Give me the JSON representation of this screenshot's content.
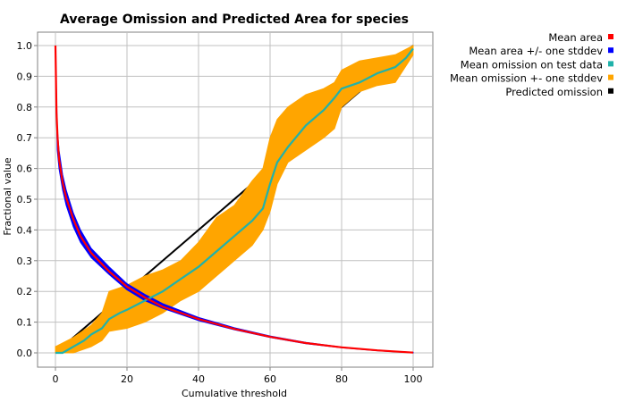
{
  "chart_data": {
    "type": "line",
    "title": "Average Omission and Predicted Area for species",
    "xlabel": "Cumulative threshold",
    "ylabel": "Fractional value",
    "xlim": [
      0,
      100
    ],
    "ylim": [
      0,
      1
    ],
    "x_ticks": [
      0,
      20,
      40,
      60,
      80,
      100
    ],
    "y_ticks": [
      0.0,
      0.1,
      0.2,
      0.3,
      0.4,
      0.5,
      0.6,
      0.7,
      0.8,
      0.9,
      1.0
    ],
    "x_tick_labels": [
      "0",
      "20",
      "40",
      "60",
      "80",
      "100"
    ],
    "y_tick_labels": [
      "0.0",
      "0.1",
      "0.2",
      "0.3",
      "0.4",
      "0.5",
      "0.6",
      "0.7",
      "0.8",
      "0.9",
      "1.0"
    ],
    "grid": true,
    "legend_position": "outside-top-right",
    "legend": [
      {
        "name": "Mean area",
        "color": "#ff0000"
      },
      {
        "name": "Mean area +/- one stddev",
        "color": "#0000ff"
      },
      {
        "name": "Mean omission on test data",
        "color": "#20b2aa"
      },
      {
        "name": "Mean omission +- one stddev",
        "color": "#ffa500"
      },
      {
        "name": "Predicted omission",
        "color": "#000000"
      }
    ],
    "series": [
      {
        "name": "Predicted omission",
        "color": "#000000",
        "x": [
          0,
          100
        ],
        "y": [
          0,
          1
        ]
      },
      {
        "name": "Mean omission +- one stddev",
        "color": "#ffa500",
        "x": [
          0,
          5,
          10,
          13,
          15,
          20,
          25,
          30,
          35,
          40,
          45,
          50,
          55,
          58,
          60,
          62,
          65,
          70,
          75,
          78,
          80,
          85,
          90,
          95,
          100
        ],
        "lower": [
          0,
          0,
          0.02,
          0.04,
          0.07,
          0.08,
          0.1,
          0.13,
          0.17,
          0.2,
          0.25,
          0.3,
          0.35,
          0.4,
          0.46,
          0.55,
          0.62,
          0.66,
          0.7,
          0.73,
          0.8,
          0.85,
          0.87,
          0.88,
          0.97
        ],
        "upper": [
          0.02,
          0.05,
          0.09,
          0.13,
          0.2,
          0.22,
          0.25,
          0.27,
          0.3,
          0.36,
          0.44,
          0.48,
          0.56,
          0.6,
          0.7,
          0.76,
          0.8,
          0.84,
          0.86,
          0.88,
          0.92,
          0.95,
          0.96,
          0.97,
          1.0
        ]
      },
      {
        "name": "Mean area +/- one stddev",
        "color": "#0000ff",
        "x": [
          0,
          0.5,
          1,
          2,
          3,
          5,
          7,
          10,
          15,
          20,
          25,
          30,
          40,
          50,
          60,
          70,
          80,
          90,
          100
        ],
        "lower": [
          0.95,
          0.66,
          0.6,
          0.53,
          0.48,
          0.41,
          0.36,
          0.31,
          0.255,
          0.205,
          0.17,
          0.145,
          0.105,
          0.075,
          0.05,
          0.03,
          0.017,
          0.007,
          0
        ],
        "upper": [
          1.0,
          0.73,
          0.66,
          0.58,
          0.53,
          0.455,
          0.4,
          0.34,
          0.28,
          0.225,
          0.19,
          0.16,
          0.115,
          0.082,
          0.055,
          0.034,
          0.019,
          0.008,
          0.002
        ]
      },
      {
        "name": "Mean omission on test data",
        "color": "#20b2aa",
        "x": [
          0,
          2,
          5,
          8,
          10,
          13,
          15,
          18,
          20,
          25,
          30,
          35,
          40,
          45,
          50,
          55,
          58,
          60,
          62,
          65,
          70,
          75,
          78,
          80,
          85,
          90,
          95,
          98,
          100
        ],
        "y": [
          0,
          0,
          0.02,
          0.04,
          0.06,
          0.08,
          0.11,
          0.13,
          0.14,
          0.17,
          0.2,
          0.24,
          0.28,
          0.33,
          0.38,
          0.43,
          0.47,
          0.55,
          0.62,
          0.67,
          0.74,
          0.79,
          0.83,
          0.86,
          0.88,
          0.91,
          0.93,
          0.96,
          0.99
        ]
      },
      {
        "name": "Mean area",
        "color": "#ff0000",
        "x": [
          0,
          0.3,
          0.6,
          1,
          2,
          3,
          5,
          7,
          10,
          15,
          20,
          25,
          30,
          40,
          50,
          60,
          70,
          80,
          90,
          100
        ],
        "y": [
          1.0,
          0.78,
          0.7,
          0.63,
          0.555,
          0.505,
          0.435,
          0.38,
          0.325,
          0.265,
          0.215,
          0.18,
          0.15,
          0.11,
          0.078,
          0.052,
          0.032,
          0.018,
          0.008,
          0.001
        ]
      }
    ]
  }
}
